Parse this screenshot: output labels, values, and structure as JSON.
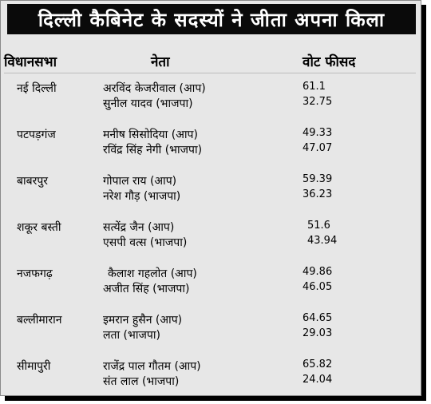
{
  "title": "दिल्ली कैबिनेट के सदस्यों ने जीता अपना किला",
  "headers": {
    "constituency": "विधानसभा",
    "leader": "नेता",
    "vote_percent": "वोट फीसद"
  },
  "rows": [
    {
      "constituency": "नई दिल्ली",
      "candidates": [
        {
          "name": "अरविंद केजरीवाल (आप)",
          "vote": "61.1"
        },
        {
          "name": "सुनील यादव (भाजपा)",
          "vote": "32.75"
        }
      ]
    },
    {
      "constituency": "पटपड़गंज",
      "candidates": [
        {
          "name": "मनीष सिसोदिया (आप)",
          "vote": "49.33"
        },
        {
          "name": "रविंद्र सिंह नेगी (भाजपा)",
          "vote": "47.07"
        }
      ]
    },
    {
      "constituency": "बाबरपुर",
      "candidates": [
        {
          "name": "गोपाल राय (आप)",
          "vote": "59.39"
        },
        {
          "name": "नरेश गौड़ (भाजपा)",
          "vote": "36.23"
        }
      ]
    },
    {
      "constituency": "शकूर बस्ती",
      "candidates": [
        {
          "name": "सत्येंद्र जैन (आप)",
          "vote": "51.6"
        },
        {
          "name": "एसपी वत्स (भाजपा)",
          "vote": "43.94"
        }
      ]
    },
    {
      "constituency": "नजफगढ़",
      "candidates": [
        {
          "name": "कैलाश गहलोत (आप)",
          "vote": "49.86"
        },
        {
          "name": "अजीत सिंह (भाजपा)",
          "vote": "46.05"
        }
      ]
    },
    {
      "constituency": "बल्लीमारान",
      "candidates": [
        {
          "name": "इमरान हुसैन (आप)",
          "vote": "64.65"
        },
        {
          "name": "लता (भाजपा)",
          "vote": "29.03"
        }
      ]
    },
    {
      "constituency": "सीमापुरी",
      "candidates": [
        {
          "name": "राजेंद्र पाल गौतम (आप)",
          "vote": "65.82"
        },
        {
          "name": "संत लाल (भाजपा)",
          "vote": "24.04"
        }
      ]
    }
  ],
  "colors": {
    "title_background": "#0a0a0a",
    "title_text": "#ffffff",
    "card_background": "#e7e7e7",
    "shadow": "#000000"
  }
}
